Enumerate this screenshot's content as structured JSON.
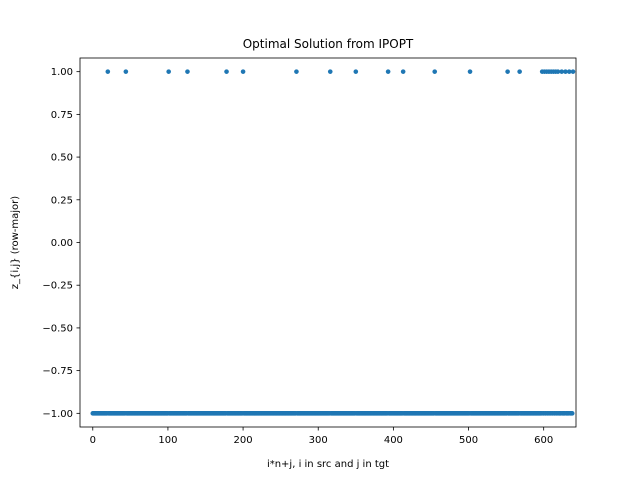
{
  "chart_data": {
    "type": "scatter",
    "title": "Optimal Solution from IPOPT",
    "xlabel": "i*n+j, i in src and j in tgt",
    "ylabel": "z_{i,j} (row-major)",
    "xlim": [
      -17,
      643
    ],
    "ylim": [
      -1.08,
      1.08
    ],
    "xticks": [
      0,
      100,
      200,
      300,
      400,
      500,
      600
    ],
    "yticks": [
      -1.0,
      -0.75,
      -0.5,
      -0.25,
      0.0,
      0.25,
      0.5,
      0.75,
      1.0
    ],
    "xtick_labels": [
      "0",
      "100",
      "200",
      "300",
      "400",
      "500",
      "600"
    ],
    "ytick_labels": [
      "−1.00",
      "−0.75",
      "−0.50",
      "−0.25",
      "0.00",
      "0.25",
      "0.50",
      "0.75",
      "1.00"
    ],
    "grid": false,
    "legend": "none",
    "marker_color": "#1f77b4",
    "x_range": [
      0,
      639
    ],
    "high_value_x": [
      20,
      44,
      101,
      126,
      178,
      200,
      271,
      316,
      350,
      393,
      413,
      455,
      502,
      552,
      568,
      598,
      601,
      604,
      607,
      610,
      613,
      616,
      619,
      624,
      629,
      634,
      639
    ],
    "high_value": 1.0,
    "low_value": -1.0
  }
}
